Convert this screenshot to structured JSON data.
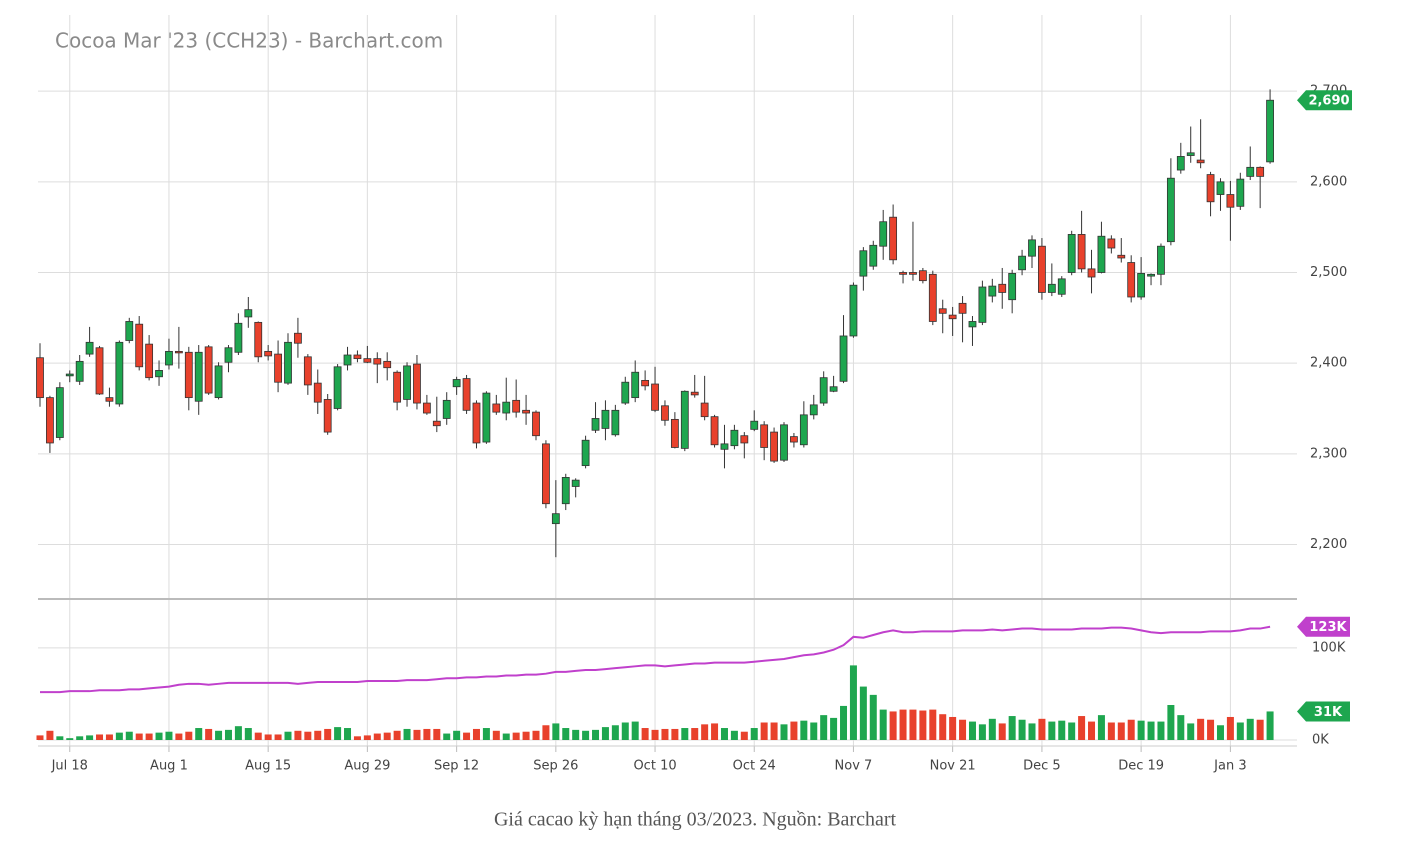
{
  "title": "Cocoa Mar '23 (CCH23) - Barchart.com",
  "caption": "Giá cacao kỳ hạn tháng 03/2023. Nguồn: Barchart",
  "chart_data": [
    {
      "type": "candlestick",
      "categories": [
        null,
        null,
        null,
        "Jul 18",
        null,
        null,
        null,
        null,
        null,
        null,
        null,
        null,
        null,
        "Aug 1",
        null,
        null,
        null,
        null,
        null,
        null,
        null,
        null,
        null,
        "Aug 15",
        null,
        null,
        null,
        null,
        null,
        null,
        null,
        null,
        null,
        "Aug 29",
        null,
        null,
        null,
        null,
        null,
        null,
        null,
        null,
        "Sep 12",
        null,
        null,
        null,
        null,
        null,
        null,
        null,
        null,
        null,
        "Sep 26",
        null,
        null,
        null,
        null,
        null,
        null,
        null,
        null,
        null,
        "Oct 10",
        null,
        null,
        null,
        null,
        null,
        null,
        null,
        null,
        null,
        "Oct 24",
        null,
        null,
        null,
        null,
        null,
        null,
        null,
        null,
        null,
        "Nov 7",
        null,
        null,
        null,
        null,
        null,
        null,
        null,
        null,
        null,
        "Nov 21",
        null,
        null,
        null,
        null,
        null,
        null,
        null,
        null,
        "Dec 5",
        null,
        null,
        null,
        null,
        null,
        null,
        null,
        null,
        null,
        "Dec 19",
        null,
        null,
        null,
        null,
        null,
        null,
        null,
        null,
        "Jan 3",
        null,
        null,
        null,
        null
      ],
      "open": [
        2406,
        2362,
        2318,
        2386,
        2380,
        2410,
        2417,
        2362,
        2355,
        2425,
        2443,
        2421,
        2385,
        2398,
        2413,
        2412,
        2358,
        2418,
        2362,
        2401,
        2412,
        2451,
        2445,
        2413,
        2410,
        2378,
        2433,
        2407,
        2378,
        2360,
        2350,
        2398,
        2409,
        2405,
        2405,
        2402,
        2390,
        2360,
        2399,
        2356,
        2336,
        2339,
        2374,
        2383,
        2356,
        2313,
        2355,
        2345,
        2359,
        2348,
        2346,
        2311,
        2223,
        2245,
        2264,
        2287,
        2326,
        2328,
        2321,
        2356,
        2362,
        2381,
        2377,
        2353,
        2338,
        2306,
        2368,
        2356,
        2341,
        2305,
        2309,
        2320,
        2327,
        2332,
        2324,
        2293,
        2319,
        2310,
        2343,
        2356,
        2369,
        2380,
        2430,
        2496,
        2507,
        2529,
        2561,
        2500,
        2500,
        2502,
        2498,
        2460,
        2453,
        2466,
        2440,
        2445,
        2474,
        2487,
        2470,
        2503,
        2518,
        2529,
        2478,
        2476,
        2500,
        2542,
        2504,
        2500,
        2537,
        2519,
        2511,
        2473,
        2496,
        2498,
        2534,
        2613,
        2629,
        2624,
        2608,
        2586,
        2586,
        2573,
        2606,
        2616,
        2622
      ],
      "high": [
        2422,
        2364,
        2379,
        2392,
        2409,
        2440,
        2419,
        2373,
        2425,
        2450,
        2452,
        2431,
        2403,
        2427,
        2440,
        2418,
        2420,
        2420,
        2401,
        2420,
        2455,
        2473,
        2446,
        2420,
        2425,
        2433,
        2450,
        2410,
        2393,
        2366,
        2399,
        2418,
        2414,
        2419,
        2412,
        2412,
        2392,
        2401,
        2409,
        2365,
        2363,
        2368,
        2385,
        2387,
        2359,
        2369,
        2365,
        2384,
        2382,
        2365,
        2348,
        2315,
        2271,
        2278,
        2273,
        2320,
        2357,
        2359,
        2354,
        2385,
        2403,
        2392,
        2396,
        2359,
        2346,
        2370,
        2387,
        2386,
        2343,
        2332,
        2332,
        2324,
        2348,
        2336,
        2329,
        2335,
        2323,
        2358,
        2365,
        2391,
        2386,
        2453,
        2489,
        2528,
        2535,
        2569,
        2575,
        2502,
        2556,
        2505,
        2502,
        2470,
        2462,
        2474,
        2452,
        2491,
        2493,
        2505,
        2503,
        2525,
        2541,
        2538,
        2510,
        2496,
        2546,
        2568,
        2525,
        2556,
        2541,
        2538,
        2519,
        2517,
        2499,
        2532,
        2626,
        2643,
        2661,
        2669,
        2611,
        2604,
        2601,
        2610,
        2639,
        2617,
        2702
      ],
      "low": [
        2352,
        2301,
        2315,
        2379,
        2376,
        2407,
        2365,
        2352,
        2352,
        2422,
        2392,
        2381,
        2375,
        2393,
        2394,
        2348,
        2343,
        2365,
        2360,
        2390,
        2409,
        2439,
        2401,
        2403,
        2368,
        2376,
        2406,
        2365,
        2344,
        2321,
        2348,
        2392,
        2401,
        2400,
        2378,
        2381,
        2348,
        2352,
        2349,
        2343,
        2324,
        2332,
        2365,
        2344,
        2306,
        2311,
        2343,
        2337,
        2340,
        2332,
        2315,
        2240,
        2186,
        2238,
        2252,
        2284,
        2323,
        2315,
        2319,
        2354,
        2357,
        2370,
        2346,
        2331,
        2306,
        2303,
        2362,
        2337,
        2307,
        2284,
        2305,
        2295,
        2325,
        2293,
        2290,
        2291,
        2307,
        2307,
        2338,
        2353,
        2368,
        2378,
        2428,
        2480,
        2503,
        2514,
        2509,
        2488,
        2491,
        2488,
        2442,
        2433,
        2430,
        2423,
        2419,
        2442,
        2467,
        2460,
        2455,
        2497,
        2505,
        2470,
        2474,
        2473,
        2497,
        2500,
        2477,
        2499,
        2521,
        2511,
        2467,
        2470,
        2486,
        2486,
        2530,
        2609,
        2621,
        2615,
        2562,
        2568,
        2535,
        2569,
        2602,
        2571,
        2620
      ],
      "close": [
        2362,
        2312,
        2373,
        2388,
        2402,
        2423,
        2366,
        2358,
        2423,
        2446,
        2396,
        2384,
        2392,
        2413,
        2412,
        2362,
        2412,
        2367,
        2397,
        2417,
        2444,
        2459,
        2407,
        2408,
        2379,
        2423,
        2422,
        2376,
        2357,
        2324,
        2396,
        2409,
        2405,
        2401,
        2399,
        2395,
        2357,
        2397,
        2356,
        2345,
        2331,
        2359,
        2382,
        2348,
        2312,
        2367,
        2346,
        2357,
        2346,
        2345,
        2320,
        2245,
        2234,
        2274,
        2271,
        2315,
        2339,
        2348,
        2348,
        2379,
        2390,
        2375,
        2348,
        2337,
        2307,
        2369,
        2365,
        2341,
        2310,
        2311,
        2326,
        2312,
        2336,
        2307,
        2292,
        2332,
        2313,
        2343,
        2354,
        2384,
        2374,
        2430,
        2486,
        2524,
        2530,
        2556,
        2514,
        2498,
        2498,
        2491,
        2446,
        2455,
        2449,
        2455,
        2446,
        2484,
        2485,
        2478,
        2499,
        2518,
        2536,
        2478,
        2487,
        2493,
        2542,
        2504,
        2495,
        2540,
        2527,
        2516,
        2473,
        2499,
        2498,
        2529,
        2604,
        2628,
        2632,
        2621,
        2578,
        2600,
        2572,
        2603,
        2616,
        2606,
        2690
      ],
      "last_close_label": "2,690",
      "up_color": "#1ea64f",
      "down_color": "#e8412c",
      "ylim": [
        2141,
        2784
      ],
      "yticks": [
        {
          "value": 2200,
          "label": "2,200"
        },
        {
          "value": 2300,
          "label": "2,300"
        },
        {
          "value": 2400,
          "label": "2,400"
        },
        {
          "value": 2500,
          "label": "2,500"
        },
        {
          "value": 2600,
          "label": "2,600"
        },
        {
          "value": 2700,
          "label": "2,700"
        }
      ],
      "grid": true
    },
    {
      "type": "volume",
      "volume": {
        "values": [
          5,
          10,
          4,
          2,
          4,
          5,
          6,
          6,
          8,
          9,
          7,
          7,
          8,
          9,
          7,
          9,
          13,
          12,
          10,
          11,
          15,
          13,
          8,
          6,
          6,
          9,
          10,
          9,
          10,
          12,
          14,
          13,
          4,
          5,
          7,
          8,
          10,
          12,
          11,
          12,
          12,
          7,
          10,
          8,
          12,
          13,
          10,
          7,
          8,
          9,
          10,
          16,
          18,
          13,
          11,
          10,
          11,
          14,
          16,
          19,
          20,
          13,
          11,
          12,
          12,
          13,
          13,
          17,
          18,
          13,
          10,
          9,
          13,
          19,
          19,
          17,
          20,
          21,
          19,
          27,
          24,
          37,
          81,
          58,
          49,
          33,
          31,
          33,
          33,
          32,
          33,
          28,
          25,
          22,
          20,
          17,
          23,
          18,
          26,
          22,
          18,
          23,
          20,
          21,
          19,
          26,
          20,
          27,
          19,
          19,
          22,
          21,
          20,
          20,
          38,
          27,
          18,
          23,
          22,
          16,
          25,
          19,
          23,
          22,
          31
        ],
        "last_value_label": "31K"
      },
      "open_interest": {
        "color": "#c040cc",
        "values": [
          52,
          52,
          52,
          53,
          53,
          53,
          54,
          54,
          54,
          55,
          55,
          56,
          57,
          58,
          60,
          61,
          61,
          60,
          61,
          62,
          62,
          62,
          62,
          62,
          62,
          62,
          61,
          62,
          63,
          63,
          63,
          63,
          63,
          64,
          64,
          64,
          64,
          65,
          65,
          65,
          66,
          67,
          67,
          68,
          68,
          69,
          69,
          70,
          70,
          71,
          71,
          72,
          74,
          74,
          75,
          76,
          76,
          77,
          78,
          79,
          80,
          81,
          81,
          80,
          81,
          82,
          83,
          83,
          84,
          84,
          84,
          84,
          85,
          86,
          87,
          88,
          90,
          92,
          93,
          95,
          98,
          103,
          112,
          111,
          114,
          117,
          119,
          117,
          117,
          118,
          118,
          118,
          118,
          119,
          119,
          119,
          120,
          119,
          120,
          121,
          121,
          120,
          120,
          120,
          120,
          121,
          121,
          121,
          122,
          122,
          121,
          119,
          117,
          116,
          117,
          117,
          117,
          117,
          118,
          118,
          118,
          119,
          121,
          121,
          123
        ],
        "last_value_label": "123K"
      },
      "ylim": [
        0,
        152
      ],
      "yticks": [
        {
          "value": 0,
          "label": "0K"
        },
        {
          "value": 100,
          "label": "100K"
        }
      ],
      "grid": true
    }
  ]
}
